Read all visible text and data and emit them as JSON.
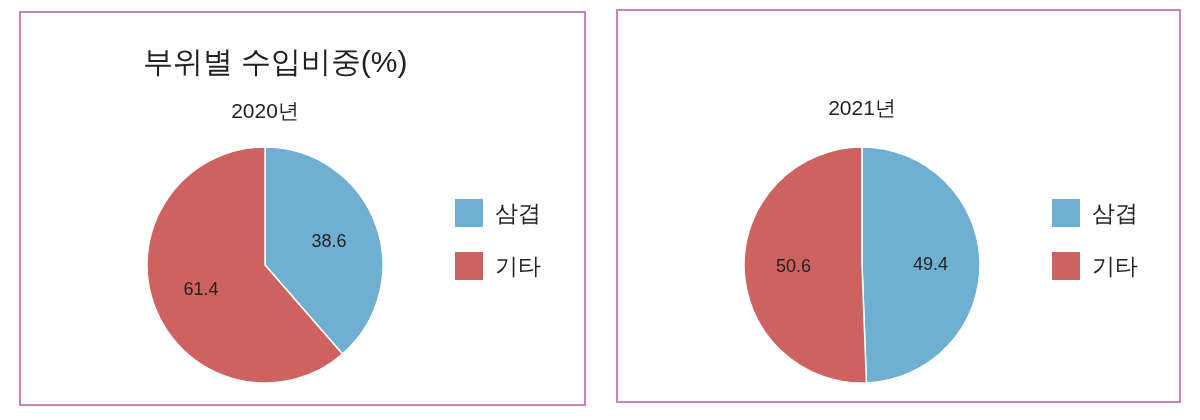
{
  "chart_data": [
    {
      "type": "pie",
      "title": "부위별 수입비중(%)",
      "subtitle": "2020년",
      "categories": [
        "삼겹",
        "기타"
      ],
      "values": [
        38.6,
        61.4
      ],
      "colors": [
        "#6fb0d2",
        "#cd6260"
      ],
      "data_labels": true,
      "legend": "right"
    },
    {
      "type": "pie",
      "title": "2021년",
      "categories": [
        "삼겹",
        "기타"
      ],
      "values": [
        49.4,
        50.6
      ],
      "colors": [
        "#6fb0d2",
        "#cd6260"
      ],
      "data_labels": true,
      "legend": "right"
    }
  ]
}
